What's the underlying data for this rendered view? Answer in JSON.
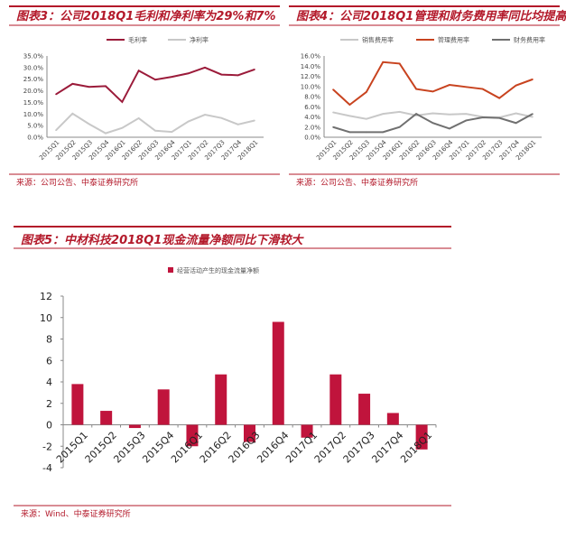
{
  "chart_data": [
    {
      "type": "line",
      "title": "图表3：公司2018Q1毛利和净利率为29%和7%",
      "source": "来源：公司公告、中泰证券研究所",
      "categories": [
        "2015Q1",
        "2015Q2",
        "2015Q3",
        "2015Q4",
        "2016Q1",
        "2016Q2",
        "2016Q3",
        "2016Q4",
        "2017Q1",
        "2017Q2",
        "2017Q3",
        "2017Q4",
        "2018Q1"
      ],
      "ylim": [
        0,
        35
      ],
      "yticks": [
        "0.0%",
        "5.0%",
        "10.0%",
        "15.0%",
        "20.0%",
        "25.0%",
        "30.0%",
        "35.0%"
      ],
      "legend": "top",
      "series": [
        {
          "name": "毛利率",
          "color": "#9b1b3a",
          "values": [
            18.5,
            23,
            21.7,
            22,
            15.2,
            28.7,
            24.8,
            26,
            27.5,
            30,
            27,
            26.7,
            29.2
          ]
        },
        {
          "name": "净利率",
          "color": "#c8c8c8",
          "values": [
            3,
            10.2,
            5.7,
            1.7,
            4,
            8.2,
            2.8,
            2.3,
            6.8,
            9.7,
            8.3,
            5.5,
            7.2
          ]
        }
      ]
    },
    {
      "type": "line",
      "title": "图表4：公司2018Q1管理和财务费用率同比均提高",
      "source": "来源：公司公告、中泰证券研究所",
      "categories": [
        "2015Q1",
        "2015Q2",
        "2015Q3",
        "2015Q4",
        "2016Q1",
        "2016Q2",
        "2016Q3",
        "2016Q4",
        "2017Q1",
        "2017Q2",
        "2017Q3",
        "2017Q4",
        "2018Q1"
      ],
      "ylim": [
        0,
        16
      ],
      "yticks": [
        "0.0%",
        "2.0%",
        "4.0%",
        "6.0%",
        "8.0%",
        "10.0%",
        "12.0%",
        "14.0%",
        "16.0%"
      ],
      "legend": "top",
      "series": [
        {
          "name": "销售费用率",
          "color": "#c8c8c8",
          "values": [
            4.9,
            4.2,
            3.6,
            4.6,
            5.0,
            4.3,
            4.7,
            4.5,
            4.6,
            4.0,
            3.9,
            4.7,
            4.0
          ]
        },
        {
          "name": "管理费用率",
          "color": "#c8431f",
          "values": [
            9.4,
            6.4,
            8.9,
            14.8,
            14.5,
            9.5,
            9.0,
            10.3,
            9.9,
            9.5,
            7.7,
            10.2,
            11.4
          ]
        },
        {
          "name": "财务费用率",
          "color": "#707070",
          "values": [
            2.0,
            1.0,
            1.0,
            1.0,
            2.0,
            4.6,
            2.8,
            1.7,
            3.3,
            3.9,
            3.8,
            2.8,
            4.6
          ]
        }
      ]
    },
    {
      "type": "bar",
      "title": "图表5：中材科技2018Q1现金流量净额同比下滑较大",
      "source": "来源：Wind、中泰证券研究所",
      "categories": [
        "2015Q1",
        "2015Q2",
        "2015Q3",
        "2015Q4",
        "2016Q1",
        "2016Q2",
        "2016Q3",
        "2016Q4",
        "2017Q1",
        "2017Q2",
        "2017Q3",
        "2017Q4",
        "2018Q1"
      ],
      "ylim": [
        -4,
        12
      ],
      "yticks": [
        "-4",
        "-2",
        "0",
        "2",
        "4",
        "6",
        "8",
        "10",
        "12"
      ],
      "legend": "top",
      "series": [
        {
          "name": "经营活动产生的现金流量净额",
          "color": "#c0143c",
          "values": [
            3.8,
            1.3,
            -0.3,
            3.3,
            -2.0,
            4.7,
            -1.6,
            9.6,
            -1.2,
            4.7,
            2.9,
            1.1,
            -2.3
          ]
        }
      ]
    }
  ]
}
